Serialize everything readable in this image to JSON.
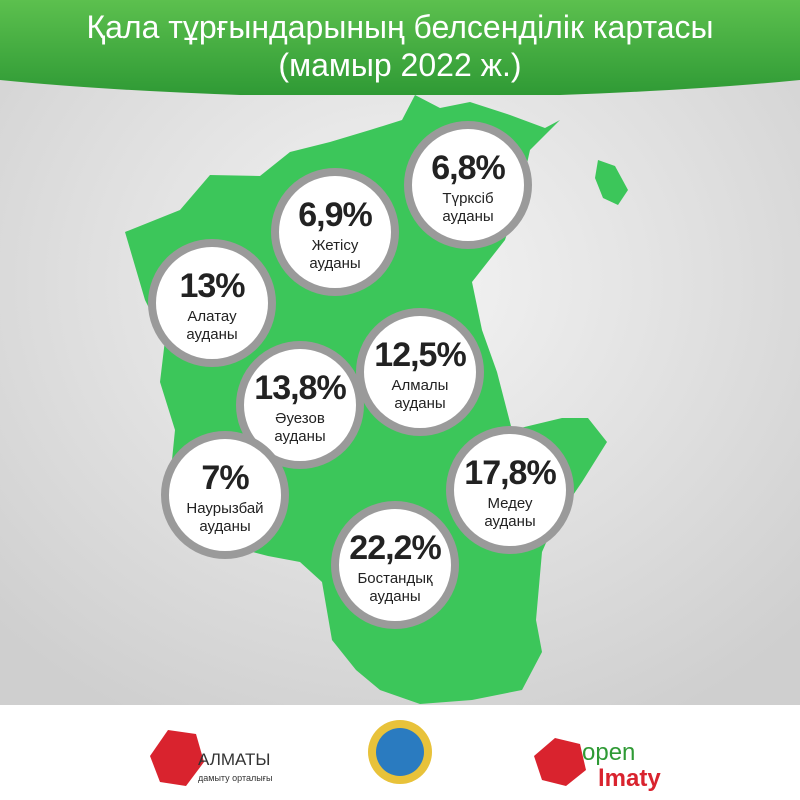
{
  "header": {
    "title": [
      "Қала тұрғындарының белсенділік картасы",
      "(мамыр 2022 ж.)"
    ]
  },
  "districts": [
    {
      "value": "6,8%",
      "name": [
        "Түрксіб",
        "ауданы"
      ]
    },
    {
      "value": "6,9%",
      "name": [
        "Жетісу",
        "ауданы"
      ]
    },
    {
      "value": "13%",
      "name": [
        "Алатау",
        "ауданы"
      ]
    },
    {
      "value": "12,5%",
      "name": [
        "Алмалы",
        "ауданы"
      ]
    },
    {
      "value": "13,8%",
      "name": [
        "Әуезов",
        "ауданы"
      ]
    },
    {
      "value": "7%",
      "name": [
        "Наурызбай",
        "ауданы"
      ]
    },
    {
      "value": "17,8%",
      "name": [
        "Медеу",
        "ауданы"
      ]
    },
    {
      "value": "22,2%",
      "name": [
        "Бостандық",
        "ауданы"
      ]
    }
  ],
  "footer": {
    "left_logo": [
      "АЛМАТЫ",
      "дамыту орталығы"
    ],
    "right_logo": [
      "open",
      "lmaty"
    ]
  }
}
